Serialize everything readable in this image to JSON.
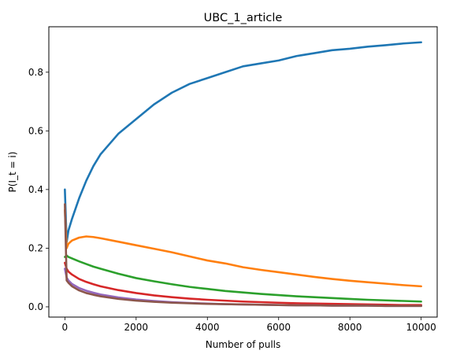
{
  "chart_data": {
    "type": "line",
    "title": "UBC_1_article",
    "xlabel": "Number of pulls",
    "ylabel": "P(I_t = i)",
    "xlim": [
      -450,
      10450
    ],
    "ylim": [
      -0.035,
      0.955
    ],
    "xticks": [
      0,
      2000,
      4000,
      6000,
      8000,
      10000
    ],
    "yticks": [
      0.0,
      0.2,
      0.4,
      0.6,
      0.8
    ],
    "grid": false,
    "legend": "none",
    "series": [
      {
        "color": "#1f77b4",
        "x": [
          0,
          50,
          100,
          200,
          400,
          600,
          800,
          1000,
          1500,
          2000,
          2500,
          3000,
          3500,
          4000,
          4500,
          5000,
          5500,
          6000,
          6500,
          7000,
          7500,
          8000,
          8500,
          9000,
          9500,
          10000
        ],
        "y": [
          0.4,
          0.22,
          0.26,
          0.3,
          0.37,
          0.43,
          0.48,
          0.52,
          0.59,
          0.64,
          0.69,
          0.73,
          0.76,
          0.78,
          0.8,
          0.82,
          0.83,
          0.84,
          0.855,
          0.865,
          0.875,
          0.88,
          0.887,
          0.892,
          0.898,
          0.902
        ]
      },
      {
        "color": "#ff7f0e",
        "x": [
          0,
          50,
          100,
          200,
          400,
          600,
          800,
          1000,
          1500,
          2000,
          2500,
          3000,
          3500,
          4000,
          4500,
          5000,
          5500,
          6000,
          6500,
          7000,
          7500,
          8000,
          8500,
          9000,
          9500,
          10000
        ],
        "y": [
          0.33,
          0.2,
          0.215,
          0.226,
          0.236,
          0.24,
          0.238,
          0.234,
          0.222,
          0.21,
          0.198,
          0.186,
          0.172,
          0.158,
          0.148,
          0.135,
          0.126,
          0.118,
          0.11,
          0.102,
          0.095,
          0.089,
          0.084,
          0.079,
          0.074,
          0.07
        ]
      },
      {
        "color": "#2ca02c",
        "x": [
          0,
          50,
          100,
          200,
          400,
          600,
          800,
          1000,
          1500,
          2000,
          2500,
          3000,
          3500,
          4000,
          4500,
          5000,
          5500,
          6000,
          6500,
          7000,
          7500,
          8000,
          8500,
          9000,
          9500,
          10000
        ],
        "y": [
          0.17,
          0.175,
          0.17,
          0.165,
          0.155,
          0.146,
          0.137,
          0.13,
          0.113,
          0.098,
          0.087,
          0.077,
          0.068,
          0.061,
          0.054,
          0.049,
          0.044,
          0.04,
          0.036,
          0.033,
          0.03,
          0.027,
          0.024,
          0.022,
          0.02,
          0.018
        ]
      },
      {
        "color": "#d62728",
        "x": [
          0,
          50,
          100,
          200,
          400,
          600,
          800,
          1000,
          1500,
          2000,
          2500,
          3000,
          3500,
          4000,
          4500,
          5000,
          5500,
          6000,
          6500,
          7000,
          7500,
          8000,
          8500,
          9000,
          9500,
          10000
        ],
        "y": [
          0.15,
          0.13,
          0.12,
          0.11,
          0.095,
          0.085,
          0.077,
          0.07,
          0.057,
          0.047,
          0.039,
          0.033,
          0.028,
          0.024,
          0.021,
          0.018,
          0.016,
          0.014,
          0.012,
          0.011,
          0.01,
          0.009,
          0.008,
          0.007,
          0.006,
          0.006
        ]
      },
      {
        "color": "#9467bd",
        "x": [
          0,
          50,
          100,
          200,
          400,
          600,
          800,
          1000,
          1500,
          2000,
          2500,
          3000,
          3500,
          4000,
          4500,
          5000,
          5500,
          6000,
          6500,
          7000,
          7500,
          8000,
          8500,
          9000,
          9500,
          10000
        ],
        "y": [
          0.13,
          0.1,
          0.09,
          0.078,
          0.064,
          0.055,
          0.048,
          0.042,
          0.032,
          0.025,
          0.02,
          0.016,
          0.013,
          0.011,
          0.009,
          0.008,
          0.007,
          0.006,
          0.005,
          0.005,
          0.004,
          0.004,
          0.004,
          0.003,
          0.003,
          0.003
        ]
      },
      {
        "color": "#8c564b",
        "x": [
          0,
          50,
          100,
          200,
          400,
          600,
          800,
          1000,
          1500,
          2000,
          2500,
          3000,
          3500,
          4000,
          4500,
          5000,
          5500,
          6000,
          6500,
          7000,
          7500,
          8000,
          8500,
          9000,
          9500,
          10000
        ],
        "y": [
          0.35,
          0.09,
          0.082,
          0.07,
          0.056,
          0.047,
          0.041,
          0.036,
          0.027,
          0.021,
          0.017,
          0.014,
          0.012,
          0.01,
          0.009,
          0.008,
          0.007,
          0.006,
          0.005,
          0.005,
          0.004,
          0.004,
          0.004,
          0.003,
          0.003,
          0.003
        ]
      }
    ]
  }
}
